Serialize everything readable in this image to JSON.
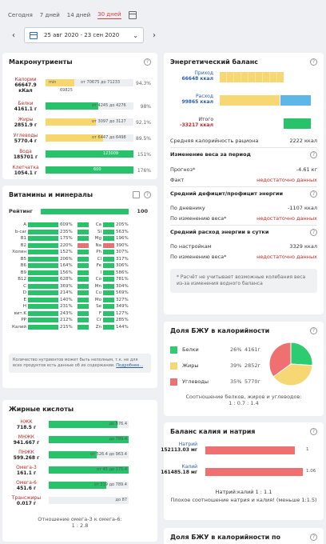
{
  "toolbar": {
    "ranges": [
      "Сегодня",
      "7 дней",
      "14 дней",
      "30 дней"
    ],
    "active_range": "30 дней",
    "date_range": "25 авг 2020 - 23 сен 2020",
    "prev": "‹",
    "next": "›",
    "chevron": "⌄"
  },
  "macro": {
    "title": "Макронутриенты",
    "help": "?",
    "rows": [
      {
        "name": "Калории",
        "value": "66647.9",
        "unit": "кКал",
        "fill": 0.14,
        "color": "#f5d76e",
        "text_mid": "min",
        "text_right": "от 70675 до 71233",
        "text_below": "69825",
        "pct": "94.3%"
      },
      {
        "name": "Белки",
        "value": "4161.1 г",
        "unit": "",
        "fill": 0.6,
        "color": "#28c26b",
        "text_right": "от 4245 до 4276",
        "pct": "98%"
      },
      {
        "name": "Жиры",
        "value": "2851.9 г",
        "unit": "",
        "fill": 0.57,
        "color": "#f5d76e",
        "text_right": "от 3097 до 3127",
        "pct": "92.1%"
      },
      {
        "name": "Углеводы",
        "value": "5770.4 г",
        "unit": "",
        "fill": 0.65,
        "color": "#f5d76e",
        "text_right": "от 6447 до 6498",
        "pct": "89.5%"
      },
      {
        "name": "Вода",
        "value": "185701 г",
        "unit": "",
        "fill": 1.0,
        "color": "#28c26b",
        "text_inside": "123009",
        "pct": "151%"
      },
      {
        "name": "Клетчатка",
        "value": "1054.1 г",
        "unit": "",
        "fill": 1.0,
        "color": "#28c26b",
        "text_inside": "600",
        "pct": "176%"
      }
    ]
  },
  "vitamins": {
    "title": "Витамины и минералы",
    "rating_label": "Рейтинг",
    "rating_value": "100",
    "left": [
      {
        "n": "A",
        "p": "609%",
        "w": 1.0,
        "c": "#28c26b"
      },
      {
        "n": "b-car",
        "p": "235%",
        "w": 1.0,
        "c": "#28c26b"
      },
      {
        "n": "B1",
        "p": "175%",
        "w": 1.0,
        "c": "#28c26b"
      },
      {
        "n": "B2",
        "p": "220%",
        "w": 1.0,
        "c": "#28c26b"
      },
      {
        "n": "Холин",
        "p": "152%",
        "w": 1.0,
        "c": "#28c26b"
      },
      {
        "n": "B5",
        "p": "206%",
        "w": 1.0,
        "c": "#28c26b"
      },
      {
        "n": "B6",
        "p": "164%",
        "w": 1.0,
        "c": "#28c26b"
      },
      {
        "n": "B9",
        "p": "156%",
        "w": 1.0,
        "c": "#28c26b"
      },
      {
        "n": "B12",
        "p": "628%",
        "w": 1.0,
        "c": "#28c26b"
      },
      {
        "n": "C",
        "p": "369%",
        "w": 1.0,
        "c": "#28c26b"
      },
      {
        "n": "D",
        "p": "214%",
        "w": 1.0,
        "c": "#28c26b"
      },
      {
        "n": "E",
        "p": "140%",
        "w": 1.0,
        "c": "#28c26b"
      },
      {
        "n": "H",
        "p": "231%",
        "w": 1.0,
        "c": "#28c26b"
      },
      {
        "n": "вит.K",
        "p": "243%",
        "w": 1.0,
        "c": "#28c26b"
      },
      {
        "n": "PP",
        "p": "212%",
        "w": 1.0,
        "c": "#28c26b"
      },
      {
        "n": "Калий",
        "p": "215%",
        "w": 1.0,
        "c": "#28c26b"
      }
    ],
    "right": [
      {
        "n": "Ca",
        "p": "205%",
        "w": 1.0,
        "c": "#28c26b"
      },
      {
        "n": "Si",
        "p": "563%",
        "w": 1.0,
        "c": "#28c26b"
      },
      {
        "n": "Mg",
        "p": "196%",
        "w": 1.0,
        "c": "#28c26b"
      },
      {
        "n": "Na",
        "p": "390%",
        "w": 1.0,
        "c": "#e57373"
      },
      {
        "n": "Ph",
        "p": "307%",
        "w": 1.0,
        "c": "#28c26b"
      },
      {
        "n": "Cl",
        "p": "317%",
        "w": 1.0,
        "c": "#28c26b"
      },
      {
        "n": "Fe",
        "p": "306%",
        "w": 1.0,
        "c": "#28c26b"
      },
      {
        "n": "I",
        "p": "586%",
        "w": 1.0,
        "c": "#28c26b"
      },
      {
        "n": "Co",
        "p": "781%",
        "w": 1.0,
        "c": "#28c26b"
      },
      {
        "n": "Mn",
        "p": "304%",
        "w": 1.0,
        "c": "#28c26b"
      },
      {
        "n": "Cu",
        "p": "569%",
        "w": 1.0,
        "c": "#28c26b"
      },
      {
        "n": "Mo",
        "p": "327%",
        "w": 1.0,
        "c": "#28c26b"
      },
      {
        "n": "Se",
        "p": "349%",
        "w": 1.0,
        "c": "#28c26b"
      },
      {
        "n": "F",
        "p": "127%",
        "w": 1.0,
        "c": "#28c26b"
      },
      {
        "n": "Cr",
        "p": "285%",
        "w": 1.0,
        "c": "#28c26b"
      },
      {
        "n": "Zn",
        "p": "144%",
        "w": 1.0,
        "c": "#28c26b"
      }
    ],
    "note": "Количество нутриентов может быть неполным, т.к. не для всех продуктов есть данные об их содержании.",
    "note_link": "Подробнее..."
  },
  "fatty": {
    "title": "Жирные кислоты",
    "rows": [
      {
        "name": "НЖК",
        "value": "718.5 г",
        "fill": 0.86,
        "color": "#28c26b",
        "text": "до 876.4"
      },
      {
        "name": "МНЖК",
        "value": "941.667 г",
        "fill": 1.0,
        "color": "#28c26b",
        "text": "до 789.4"
      },
      {
        "name": "ПНЖК",
        "value": "599.268 г",
        "fill": 0.6,
        "color": "#28c26b",
        "text": "от 526.4 до 963.4"
      },
      {
        "name": "Омега-3",
        "value": "161.1 г",
        "fill": 1.0,
        "color": "#28c26b",
        "text": "от 45 до 175.4"
      },
      {
        "name": "Омега-6",
        "value": "451.6 г",
        "fill": 0.72,
        "color": "#28c26b",
        "text": "от 219 до 789.4"
      },
      {
        "name": "Трансжиры",
        "value": "0.017 г",
        "fill": 0.0,
        "color": "#28c26b",
        "text": "до 87"
      }
    ],
    "ratio_label": "Отношение омега-3 к омега-6:",
    "ratio_value": "1 : 2.8"
  },
  "energy": {
    "title": "Энергетический баланс",
    "income_label": "Приход",
    "income_value": "66648 ккал",
    "expense_label": "Расход",
    "expense_value": "99865 ккал",
    "total_label": "Итого",
    "total_value": "-33217 ккал",
    "avg_label": "Средняя калорийность рациона",
    "avg_value": "2222 ккал",
    "weight_title": "Изменение веса за период",
    "forecast_label": "Прогноз*",
    "forecast_value": "-4.61 кг",
    "fact_label": "Факт",
    "fact_value": "недостаточно данных",
    "deficit_title": "Средний дефицит/профицит энергии",
    "diary_label": "По дневнику",
    "diary_value": "-1107 ккал",
    "bywt_label": "По изменению веса*",
    "bywt_value": "недостаточно данных",
    "avgexp_title": "Средний расход энергии в сутки",
    "settings_label": "По настройкам",
    "settings_value": "3329 ккал",
    "bywt2_label": "По изменению веса*",
    "bywt2_value": "недостаточно данных",
    "note": "* Расчёт не учитывает возможные колебания веса из-за изменения водного баланса"
  },
  "bju": {
    "title": "Доля БЖУ в калорийности",
    "items": [
      {
        "name": "Белки",
        "pct": "26%",
        "grams": "4161г",
        "color": "#2ecc71",
        "share": 26
      },
      {
        "name": "Жиры",
        "pct": "39%",
        "grams": "2852г",
        "color": "#f7d774",
        "share": 39
      },
      {
        "name": "Углеводы",
        "pct": "35%",
        "grams": "5770г",
        "color": "#ef7070",
        "share": 35
      }
    ],
    "ratio_label": "Соотношение белков, жиров и углеводов:",
    "ratio_value": "1 : 0.7 : 1.4"
  },
  "kna": {
    "title": "Баланс калия и натрия",
    "sodium_label": "Натрий",
    "sodium_value": "152113.03 мг",
    "sodium_fill": 0.92,
    "sodium_end": "1",
    "potassium_label": "Калий",
    "potassium_value": "161485.18 мг",
    "potassium_fill": 1.0,
    "potassium_end": "1.06",
    "ratio": "Натрий:калий 1 : 1.1",
    "warning": "Плохое соотношение натрия и калия! (меньше 1:1.5)"
  },
  "bottom_title": "Доля БЖУ в калорийности по"
}
